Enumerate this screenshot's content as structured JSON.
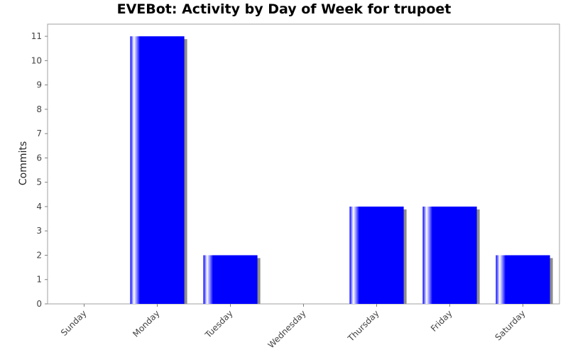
{
  "chart_data": {
    "type": "bar",
    "title": "EVEBot: Activity by Day of Week for trupoet",
    "xlabel": "",
    "ylabel": "Commits",
    "categories": [
      "Sunday",
      "Monday",
      "Tuesday",
      "Wednesday",
      "Thursday",
      "Friday",
      "Saturday"
    ],
    "values": [
      0,
      11,
      2,
      0,
      4,
      4,
      2
    ],
    "ylim": [
      0,
      11.5
    ],
    "yticks": [
      0,
      1,
      2,
      3,
      4,
      5,
      6,
      7,
      8,
      9,
      10,
      11
    ],
    "grid": false,
    "legend": "none",
    "colors": {
      "bar": "#0000ff",
      "shadow": "#8c8c8c",
      "plot_border": "#a0a0a0",
      "axis": "#808080"
    }
  }
}
